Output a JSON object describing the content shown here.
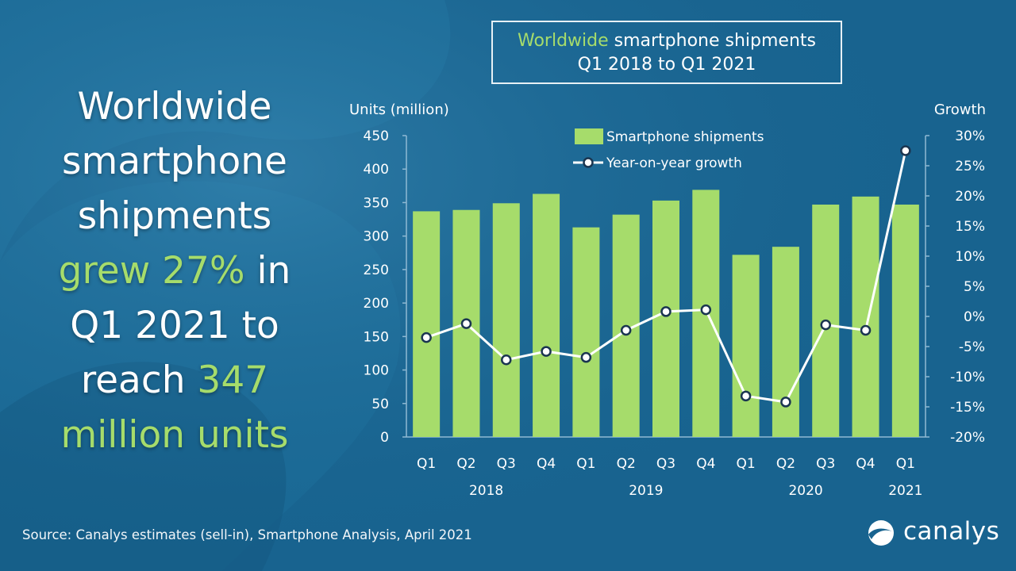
{
  "headline": {
    "line1": "Worldwide",
    "line2": "smartphone",
    "line3": "shipments",
    "grew": "grew 27%",
    "in": " in",
    "line5": "Q1 2021 to",
    "reach": "reach ",
    "units_value": "347",
    "line7": "million units"
  },
  "title": {
    "accent": "Worldwide",
    "rest": " smartphone shipments",
    "line2": "Q1 2018 to Q1 2021"
  },
  "source": "Source: Canalys estimates (sell-in), Smartphone Analysis, April 2021",
  "brand": "canalys",
  "colors": {
    "background": "#18638f",
    "bar": "#a6dc6b",
    "line": "#ffffff",
    "accent_text": "#a6dc6b"
  },
  "chart_data": {
    "type": "bar",
    "title": "Worldwide smartphone shipments Q1 2018 to Q1 2021",
    "ylabel": "Units (million)",
    "y2label": "Growth",
    "ylim": [
      0,
      450
    ],
    "yticks": [
      "0",
      "50",
      "100",
      "150",
      "200",
      "250",
      "300",
      "350",
      "400",
      "450"
    ],
    "y2lim": [
      -20,
      30
    ],
    "y2ticks": [
      "-20%",
      "-15%",
      "-10%",
      "-5%",
      "0%",
      "5%",
      "10%",
      "15%",
      "20%",
      "25%",
      "30%"
    ],
    "categories": [
      "Q1",
      "Q2",
      "Q3",
      "Q4",
      "Q1",
      "Q2",
      "Q3",
      "Q4",
      "Q1",
      "Q2",
      "Q3",
      "Q4",
      "Q1"
    ],
    "year_groups": [
      {
        "label": "2018",
        "start": 0,
        "end": 3
      },
      {
        "label": "2019",
        "start": 4,
        "end": 7
      },
      {
        "label": "2020",
        "start": 8,
        "end": 11
      },
      {
        "label": "2021",
        "start": 12,
        "end": 12
      }
    ],
    "legend_position": "top",
    "series": [
      {
        "name": "Smartphone shipments",
        "type": "bar",
        "axis": "left",
        "values": [
          337,
          339,
          349,
          363,
          313,
          332,
          353,
          369,
          272,
          284,
          347,
          359,
          347
        ]
      },
      {
        "name": "Year-on-year growth",
        "type": "line",
        "axis": "right",
        "values": [
          -3.5,
          -1.2,
          -7.2,
          -5.8,
          -6.8,
          -2.3,
          0.8,
          1.1,
          -13.2,
          -14.2,
          -1.4,
          -2.3,
          27.5
        ]
      }
    ]
  }
}
